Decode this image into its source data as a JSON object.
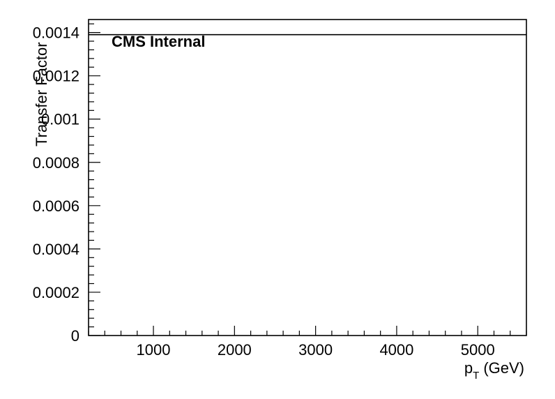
{
  "chart_data": {
    "type": "line",
    "title": "",
    "xlabel": "p",
    "xlabel_sub": "T",
    "xlabel_unit": "(GeV)",
    "ylabel": "Transfer Factor",
    "annotation": "CMS Internal",
    "xlim": [
      200,
      5600
    ],
    "ylim": [
      0,
      0.00146
    ],
    "x_ticks": [
      1000,
      2000,
      3000,
      4000,
      5000
    ],
    "x_tick_labels": [
      "1000",
      "2000",
      "3000",
      "4000",
      "5000"
    ],
    "y_ticks": [
      0,
      0.0002,
      0.0004,
      0.0006,
      0.0008,
      0.001,
      0.0012,
      0.0014
    ],
    "y_tick_labels": [
      "0",
      "0.0002",
      "0.0004",
      "0.0006",
      "0.0008",
      "0.001",
      "0.0012",
      "0.0014"
    ],
    "series": [
      {
        "x": [
          200,
          5600
        ],
        "values": [
          0.00139,
          0.00139
        ],
        "color": "#000000"
      }
    ],
    "grid": false,
    "legend": "none"
  }
}
